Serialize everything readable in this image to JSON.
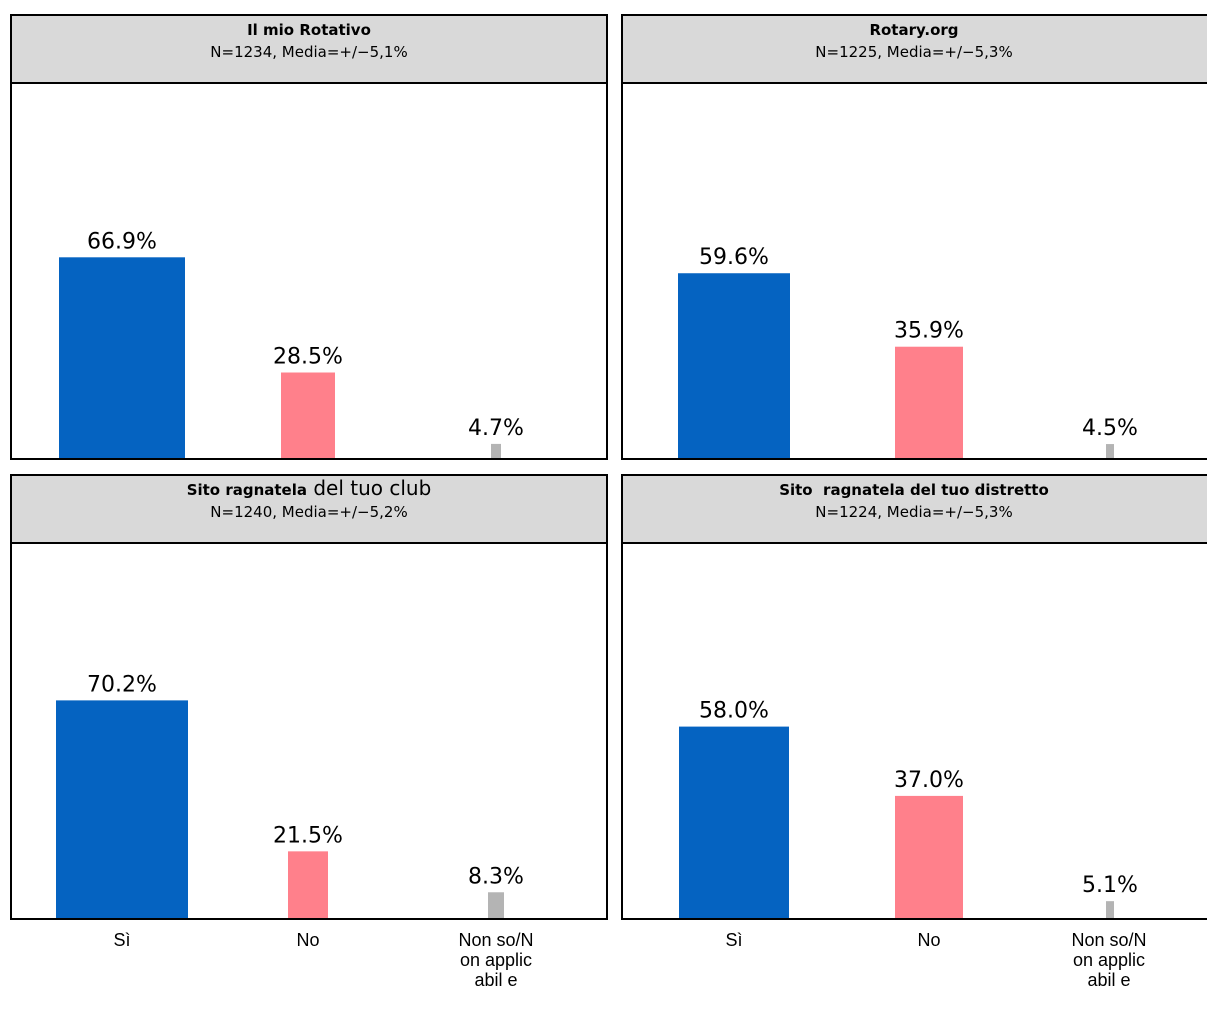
{
  "colors": {
    "si": "#0563c1",
    "no": "#ff808b",
    "non_so": "#b4b4b4",
    "header_bg": "#d9d9d9"
  },
  "x_axis": {
    "categories": [
      "Sì",
      "No",
      "Non so/Non applicabil e"
    ]
  },
  "chart_data": [
    {
      "type": "bar",
      "title": "Il mio Rotativo",
      "subtitle": "N=1234, Media=+/−5,1%",
      "categories": [
        "Sì",
        "No",
        "Non so/Non applicabil e"
      ],
      "values": [
        66.9,
        28.5,
        4.7
      ],
      "value_labels": [
        "66.9%",
        "28.5%",
        "4.7%"
      ],
      "ylim": [
        0,
        85
      ],
      "grid": false,
      "legend": "none"
    },
    {
      "type": "bar",
      "title": "Rotary.org",
      "subtitle": "N=1225, Media=+/−5,3%",
      "categories": [
        "Sì",
        "No",
        "Non so/Non applicabil e"
      ],
      "values": [
        59.6,
        35.9,
        4.5
      ],
      "value_labels": [
        "59.6%",
        "35.9%",
        "4.5%"
      ],
      "ylim": [
        0,
        85
      ],
      "grid": false,
      "legend": "none"
    },
    {
      "type": "bar",
      "title_bold": "Sito ragnatela",
      "title_rest": " del tuo club",
      "subtitle": "N=1240, Media=+/−5,2%",
      "categories": [
        "Sì",
        "No",
        "Non so/Non applicabil e"
      ],
      "values": [
        70.2,
        21.5,
        8.3
      ],
      "value_labels": [
        "70.2%",
        "21.5%",
        "8.3%"
      ],
      "ylim": [
        0,
        85
      ],
      "grid": false,
      "legend": "none"
    },
    {
      "type": "bar",
      "title": "Sito  ragnatela del tuo distretto",
      "subtitle": "N=1224, Media=+/−5,3%",
      "categories": [
        "Sì",
        "No",
        "Non so/Non applicabil e"
      ],
      "values": [
        58.0,
        37.0,
        5.1
      ],
      "value_labels": [
        "58.0%",
        "37.0%",
        "5.1%"
      ],
      "ylim": [
        0,
        85
      ],
      "grid": false,
      "legend": "none"
    }
  ]
}
